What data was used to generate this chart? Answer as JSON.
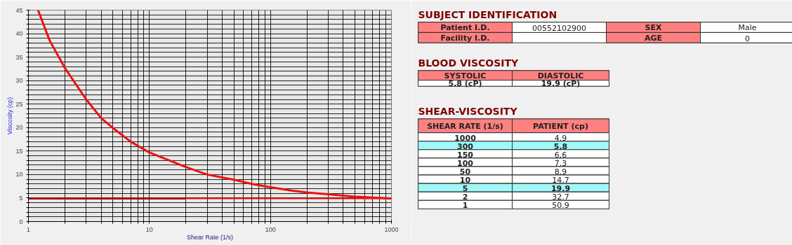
{
  "chart_data": [
    {
      "type": "line",
      "xlabel": "Shear Rate (1/s)",
      "ylabel": "Viscosity (cp)",
      "log": "x",
      "xlim": [
        1,
        1000
      ],
      "ylim": [
        0,
        45
      ],
      "xticks": [
        1,
        {
          "value": 2,
          "label": null
        },
        {
          "value": 3,
          "label": null
        },
        {
          "value": 4,
          "label": null
        },
        {
          "value": 5,
          "label": null
        },
        {
          "value": 6,
          "label": null
        },
        {
          "value": 7,
          "label": null
        },
        {
          "value": 8,
          "label": null
        },
        {
          "value": 9,
          "label": null
        },
        10,
        {
          "value": 20,
          "label": null
        },
        {
          "value": 30,
          "label": null
        },
        {
          "value": 40,
          "label": null
        },
        {
          "value": 50,
          "label": null
        },
        {
          "value": 60,
          "label": null
        },
        {
          "value": 70,
          "label": null
        },
        {
          "value": 80,
          "label": null
        },
        {
          "value": 90,
          "label": null
        },
        100,
        {
          "value": 200,
          "label": null
        },
        {
          "value": 300,
          "label": null
        },
        {
          "value": 400,
          "label": null
        },
        {
          "value": 500,
          "label": null
        },
        {
          "value": 600,
          "label": null
        },
        {
          "value": 700,
          "label": null
        },
        {
          "value": 800,
          "label": null
        },
        {
          "value": 900,
          "label": null
        },
        1000
      ],
      "yticks": [
        0,
        {
          "value": 1,
          "label": null
        },
        {
          "value": 2,
          "label": null
        },
        {
          "value": 3,
          "label": null
        },
        {
          "value": 4,
          "label": null
        },
        5,
        {
          "value": 6,
          "label": null
        },
        {
          "value": 7,
          "label": null
        },
        {
          "value": 8,
          "label": null
        },
        {
          "value": 9,
          "label": null
        },
        10,
        {
          "value": 11,
          "label": null
        },
        {
          "value": 12,
          "label": null
        },
        {
          "value": 13,
          "label": null
        },
        {
          "value": 14,
          "label": null
        },
        15,
        {
          "value": 16,
          "label": null
        },
        {
          "value": 17,
          "label": null
        },
        {
          "value": 18,
          "label": null
        },
        {
          "value": 19,
          "label": null
        },
        20,
        {
          "value": 21,
          "label": null
        },
        {
          "value": 22,
          "label": null
        },
        {
          "value": 23,
          "label": null
        },
        {
          "value": 24,
          "label": null
        },
        25,
        {
          "value": 26,
          "label": null
        },
        {
          "value": 27,
          "label": null
        },
        {
          "value": 28,
          "label": null
        },
        {
          "value": 29,
          "label": null
        },
        30,
        {
          "value": 31,
          "label": null
        },
        {
          "value": 32,
          "label": null
        },
        {
          "value": 33,
          "label": null
        },
        {
          "value": 34,
          "label": null
        },
        35,
        {
          "value": 36,
          "label": null
        },
        {
          "value": 37,
          "label": null
        },
        {
          "value": 38,
          "label": null
        },
        {
          "value": 39,
          "label": null
        },
        40,
        {
          "value": 41,
          "label": null
        },
        {
          "value": 42,
          "label": null
        },
        {
          "value": 43,
          "label": null
        },
        {
          "value": 44,
          "label": null
        },
        45
      ],
      "grid": true,
      "line_style": "solid",
      "marker": "none",
      "series": [
        {
          "color": "#ee1111",
          "x": [
            1.2,
            1.5,
            2,
            3,
            4,
            5,
            7,
            10,
            20,
            30,
            50,
            70,
            100,
            150,
            200,
            300,
            500,
            700,
            1000
          ],
          "values": [
            45,
            38.5,
            32.7,
            26,
            22,
            19.9,
            17,
            14.7,
            11.6,
            10,
            8.9,
            8,
            7.3,
            6.6,
            6.2,
            5.8,
            5.3,
            5.1,
            4.9
          ]
        },
        {
          "color": "#a01010",
          "x": [
            1,
            20
          ],
          "values": [
            4.9,
            4.9
          ]
        }
      ],
      "ref_lines": [
        {
          "axis": "y",
          "value": 4.9,
          "color": "#ee1111"
        }
      ]
    },
    {
      "type": "other",
      "title": "SUBJECT IDENTIFICATION",
      "annotations": [
        "Patient I.D.",
        "00552102900",
        "SEX",
        "Male",
        "Facility I.D.",
        null,
        "AGE",
        "0"
      ]
    },
    {
      "type": "other",
      "title": "BLOOD VISCOSITY",
      "annotations": [
        "SYSTOLIC",
        "DIASTOLIC",
        "5.8 (cP)",
        "19.9 (cP)"
      ]
    },
    {
      "type": "other",
      "title": "SHEAR-VISCOSITY",
      "annotations": [
        "SHEAR RATE (1/s)",
        "PATIENT (cp)",
        "1000",
        "4.9",
        "300",
        "5.8",
        "150",
        "6.6",
        "100",
        "7.3",
        "50",
        "8.9",
        "10",
        "14.7",
        "5",
        "19.9",
        "2",
        "32.7",
        "1",
        "50.9"
      ]
    }
  ]
}
